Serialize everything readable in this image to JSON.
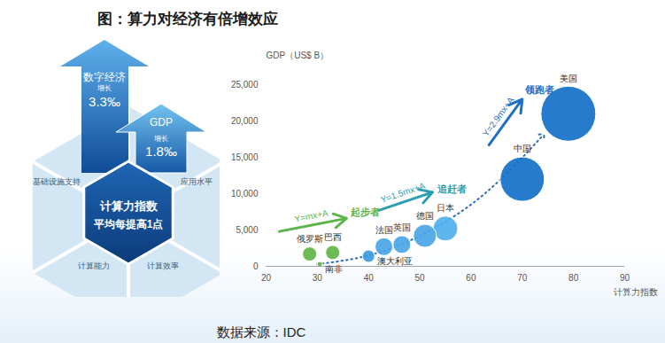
{
  "title": "图：算力对经济有倍增效应",
  "source": "数据来源：IDC",
  "diagram": {
    "arrows": [
      {
        "label": "数字经济",
        "sub": "增长",
        "value": "3.3‰"
      },
      {
        "label": "GDP",
        "sub": "增长",
        "value": "1.8‰"
      }
    ],
    "center": [
      "计算力指数",
      "平均每提高1点"
    ],
    "segments": [
      "基础设施支持",
      "应用水平",
      "计算能力",
      "计算效率"
    ]
  },
  "chart_data": {
    "type": "scatter",
    "x_label": "计算力指数",
    "y_label": "GDP（US$ B）",
    "labels": [
      "俄罗斯",
      "巴西",
      "南非",
      "澳大利亚",
      "法国",
      "英国",
      "德国",
      "日本",
      "中国",
      "美国"
    ],
    "x": [
      28.5,
      33,
      30.5,
      40,
      43,
      46.5,
      51,
      55,
      70,
      79
    ],
    "values": [
      1700,
      1900,
      300,
      1400,
      2700,
      3000,
      4200,
      5200,
      12000,
      21000
    ],
    "size": [
      64,
      64,
      9,
      49,
      100,
      100,
      169,
      196,
      625,
      961
    ],
    "colors": [
      "#62b447",
      "#62b447",
      "#62b447",
      "#3d9ae0",
      "#4aa5e6",
      "#4aa5e6",
      "#4aa5e6",
      "#4fb0ee",
      "#1470c8",
      "#1470c8"
    ],
    "xlim": [
      20,
      90
    ],
    "xticks": [
      20,
      30,
      40,
      50,
      60,
      70,
      80,
      90
    ],
    "ylim": [
      0,
      25000
    ],
    "yticks": [
      0,
      {
        "value": 5000,
        "label": "5,000"
      },
      {
        "value": 10000,
        "label": "10,000"
      },
      {
        "value": 15000,
        "label": "15,000"
      },
      {
        "value": 20000,
        "label": "20,000"
      },
      {
        "value": 25000,
        "label": "25,000"
      }
    ],
    "grid": false,
    "trend": {
      "x": [
        30,
        40,
        50,
        60,
        68,
        74
      ],
      "values": [
        300,
        1500,
        4200,
        8500,
        13500,
        18000
      ],
      "color": "#2b6cb5",
      "line_style": "dotted",
      "marker": "arrow"
    },
    "annotations": [
      {
        "equation": "Y=mx+A",
        "label": "起步者",
        "color": "#5cb54a",
        "arrow": {
          "x1": 22.6,
          "y1": 4800,
          "x2": 35.7,
          "y2": 6600
        },
        "label_x": 36.5,
        "label_y": 7400
      },
      {
        "equation": "Y=1.5mx+A",
        "label": "追赶者",
        "color": "#2a9fb0",
        "arrow": {
          "x1": 42,
          "y1": 7700,
          "x2": 52.5,
          "y2": 10200
        },
        "label_x": 53.5,
        "label_y": 10600
      },
      {
        "equation": "Y=2.9mx+A",
        "label": "领跑者",
        "color": "#1f6fc5",
        "arrow": {
          "x1": 63.5,
          "y1": 16700,
          "x2": 70,
          "y2": 23000
        },
        "label_x": 70.5,
        "label_y": 24300
      }
    ]
  }
}
